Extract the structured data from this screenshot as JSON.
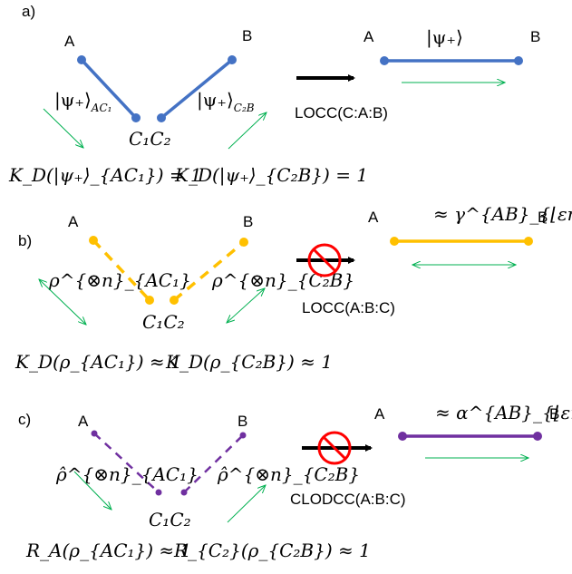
{
  "colors": {
    "blue": "#4472c4",
    "yellow": "#ffc000",
    "purple": "#7030a0",
    "green": "#00b050",
    "black": "#000000",
    "red": "#ff0000"
  },
  "panels": {
    "a": {
      "label": "a)",
      "left_A": "A",
      "left_B": "B",
      "right_A": "A",
      "right_B": "B",
      "operation": "LOCC(C:A:B)",
      "state_left_base": "|ψ₊⟩",
      "state_left_sub": "AC₁",
      "state_right_base": "|ψ₊⟩",
      "state_right_sub": "C₂B",
      "c_nodes": "C₁C₂",
      "target_state": "|ψ₊⟩",
      "eq_left": "K_D(|ψ₊⟩_{AC₁}) = 1",
      "eq_right": "K_D(|ψ₊⟩_{C₂B}) = 1",
      "line_style": "solid",
      "blocked": false
    },
    "b": {
      "label": "b)",
      "left_A": "A",
      "left_B": "B",
      "right_A": "A",
      "right_B": "B",
      "operation": "LOCC(A:B:C)",
      "state_left": "ρ^{⊗n}_{AC₁}",
      "state_right": "ρ^{⊗n}_{C₂B}",
      "c_nodes": "C₁C₂",
      "target_state": "≈ γ^{AB}_{⌊εn⌋}",
      "eq_left": "K_D(ρ_{AC₁}) ≈ 1",
      "eq_right": "K_D(ρ_{C₂B}) ≈ 1",
      "line_style": "dashed",
      "blocked": true
    },
    "c": {
      "label": "c)",
      "left_A": "A",
      "left_B": "B",
      "right_A": "A",
      "right_B": "B",
      "operation": "CLODCC(A:B:C)",
      "state_left": "ρ̂^{⊗n}_{AC₁}",
      "state_right": "ρ̂^{⊗n}_{C₂B}",
      "c_nodes": "C₁C₂",
      "target_state": "≈ α^{AB}_{⌊εn⌋}",
      "eq_left": "R_A(ρ_{AC₁}) ≈ 1",
      "eq_right": "R_{C₂}(ρ_{C₂B}) ≈ 1",
      "line_style": "dashed",
      "blocked": true
    }
  }
}
